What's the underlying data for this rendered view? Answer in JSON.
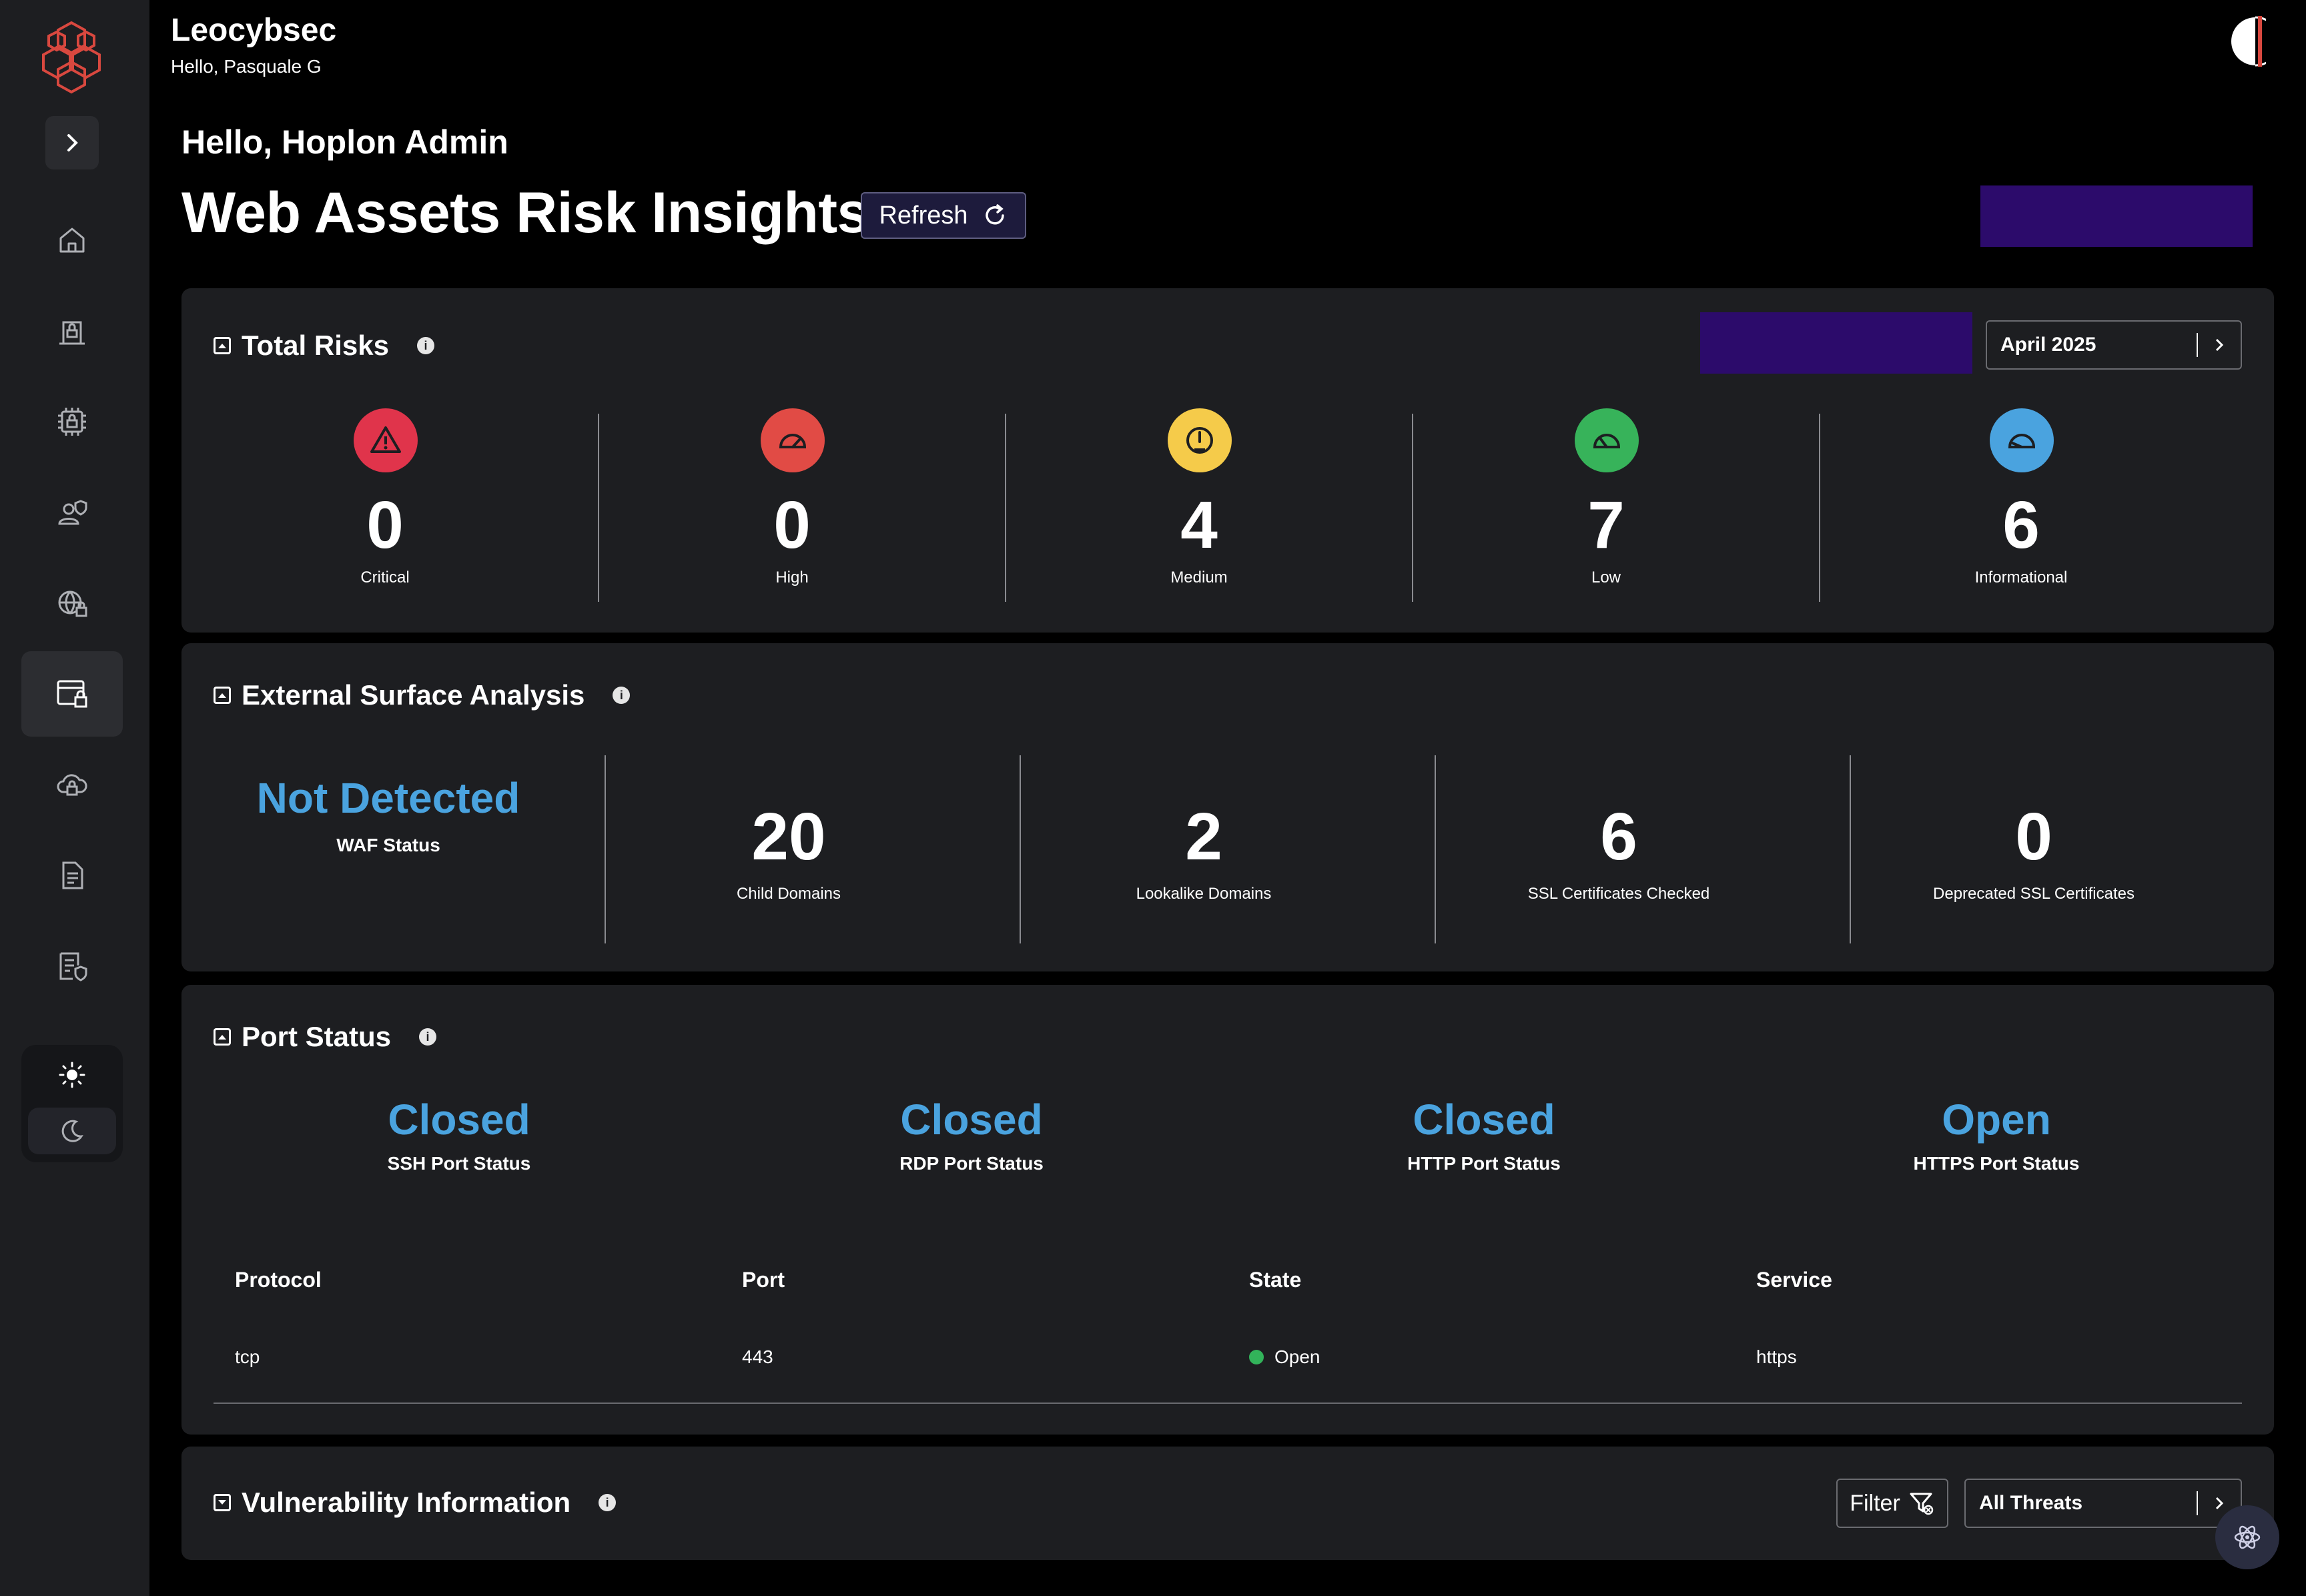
{
  "app": {
    "title": "Leocybsec",
    "subtitle": "Hello, Pasquale G"
  },
  "header": {
    "greeting": "Hello, Hoplon Admin",
    "page_title": "Web Assets Risk Insights",
    "refresh_label": "Refresh"
  },
  "sidebar": {
    "items": [
      {
        "icon": "home-icon",
        "active": false
      },
      {
        "icon": "building-lock-icon",
        "active": false
      },
      {
        "icon": "chip-lock-icon",
        "active": false
      },
      {
        "icon": "user-shield-icon",
        "active": false
      },
      {
        "icon": "globe-lock-icon",
        "active": false
      },
      {
        "icon": "web-lock-icon",
        "active": true
      },
      {
        "icon": "cloud-lock-icon",
        "active": false
      },
      {
        "icon": "document-icon",
        "active": false
      },
      {
        "icon": "document-shield-icon",
        "active": false
      }
    ],
    "theme": {
      "light_icon": "sun-icon",
      "dark_icon": "moon-icon"
    }
  },
  "total_risks": {
    "title": "Total Risks",
    "month": "April 2025",
    "items": [
      {
        "value": "0",
        "label": "Critical",
        "color": "#e0344b"
      },
      {
        "value": "0",
        "label": "High",
        "color": "#e14b45"
      },
      {
        "value": "4",
        "label": "Medium",
        "color": "#f5cb4a"
      },
      {
        "value": "7",
        "label": "Low",
        "color": "#37b35a"
      },
      {
        "value": "6",
        "label": "Informational",
        "color": "#4aa3df"
      }
    ]
  },
  "external_surface": {
    "title": "External Surface Analysis",
    "waf": {
      "value": "Not Detected",
      "label": "WAF Status"
    },
    "items": [
      {
        "value": "20",
        "label": "Child Domains"
      },
      {
        "value": "2",
        "label": "Lookalike Domains"
      },
      {
        "value": "6",
        "label": "SSL Certificates Checked"
      },
      {
        "value": "0",
        "label": "Deprecated SSL Certificates"
      }
    ]
  },
  "port_status": {
    "title": "Port Status",
    "items": [
      {
        "value": "Closed",
        "label": "SSH Port Status"
      },
      {
        "value": "Closed",
        "label": "RDP Port Status"
      },
      {
        "value": "Closed",
        "label": "HTTP Port Status"
      },
      {
        "value": "Open",
        "label": "HTTPS Port Status"
      }
    ],
    "table": {
      "headers": [
        "Protocol",
        "Port",
        "State",
        "Service"
      ],
      "rows": [
        {
          "protocol": "tcp",
          "port": "443",
          "state": "Open",
          "service": "https"
        }
      ]
    }
  },
  "vulnerability": {
    "title": "Vulnerability Information",
    "filter_label": "Filter",
    "threat_select": "All Threats"
  },
  "colors": {
    "accent_blue": "#4aa3df",
    "brand_purple": "#2c0b6b",
    "panel": "#1d1e21",
    "status_green": "#32b35a"
  }
}
